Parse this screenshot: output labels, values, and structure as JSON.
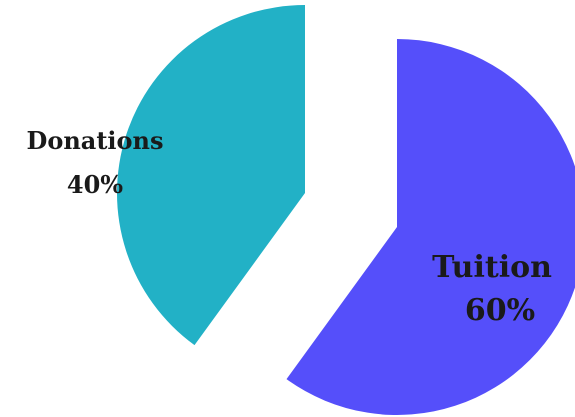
{
  "chart_data": {
    "type": "pie",
    "title": "",
    "slices": [
      {
        "label": "Tuition",
        "value": 60,
        "value_label": "60%",
        "color": "#554ffa",
        "exploded": true
      },
      {
        "label": "Donations",
        "value": 40,
        "value_label": "40%",
        "color": "#22b1c6",
        "exploded": true
      }
    ],
    "start_angle_deg": 0,
    "direction": "clockwise",
    "legend": "none"
  }
}
